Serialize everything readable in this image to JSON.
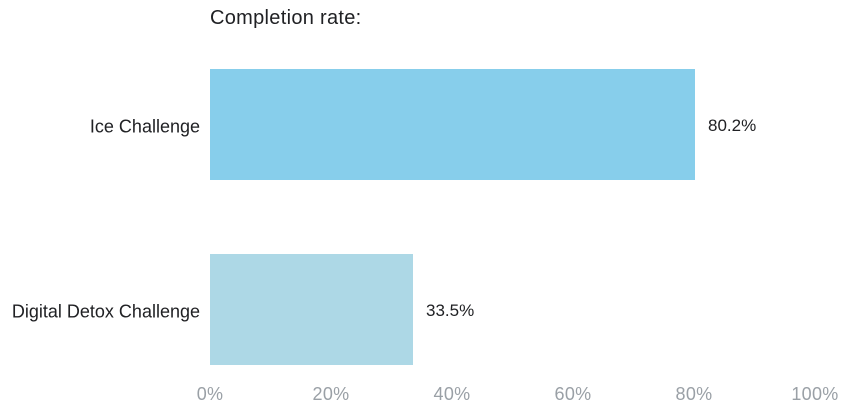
{
  "chart_data": {
    "type": "bar",
    "orientation": "horizontal",
    "title": "Completion rate:",
    "categories": [
      "Ice Challenge",
      "Digital Detox Challenge"
    ],
    "values": [
      80.2,
      33.5
    ],
    "value_labels": [
      "80.2%",
      "33.5%"
    ],
    "bar_colors": [
      "#87CEEB",
      "#ADD8E6"
    ],
    "x_tick_labels": [
      "0%",
      "20%",
      "40%",
      "60%",
      "80%",
      "100%"
    ],
    "xlim": [
      0,
      100
    ],
    "grid": false,
    "axis_line": false,
    "legend": false,
    "colors": {
      "title_text": "#202124",
      "category_text": "#202124",
      "value_text": "#202124",
      "tick_text": "#9aa0a6",
      "background": "#ffffff"
    }
  }
}
